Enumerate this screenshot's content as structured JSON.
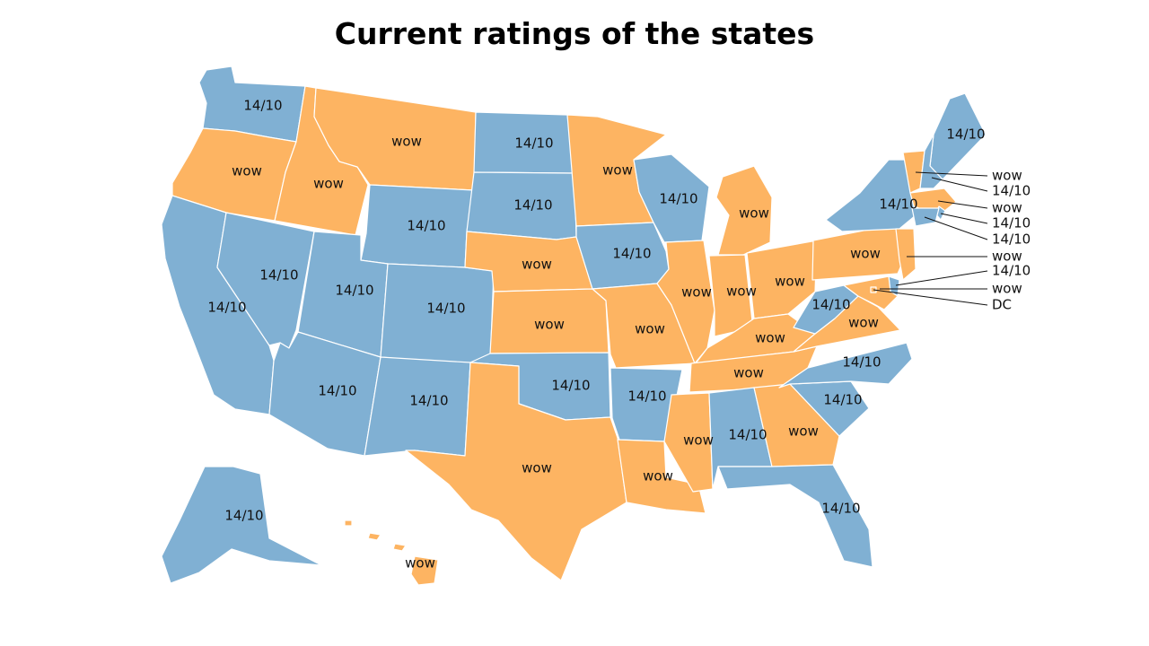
{
  "title": "Current ratings of the states",
  "colors": {
    "14/10": "#80b0d3",
    "wow": "#fdb462"
  },
  "states": [
    {
      "id": "WA",
      "value": "14/10"
    },
    {
      "id": "OR",
      "value": "wow"
    },
    {
      "id": "CA",
      "value": "14/10"
    },
    {
      "id": "ID",
      "value": "wow"
    },
    {
      "id": "NV",
      "value": "14/10"
    },
    {
      "id": "MT",
      "value": "wow"
    },
    {
      "id": "WY",
      "value": "14/10"
    },
    {
      "id": "UT",
      "value": "14/10"
    },
    {
      "id": "AZ",
      "value": "14/10"
    },
    {
      "id": "CO",
      "value": "14/10"
    },
    {
      "id": "NM",
      "value": "14/10"
    },
    {
      "id": "ND",
      "value": "14/10"
    },
    {
      "id": "SD",
      "value": "14/10"
    },
    {
      "id": "NE",
      "value": "wow"
    },
    {
      "id": "KS",
      "value": "wow"
    },
    {
      "id": "OK",
      "value": "14/10"
    },
    {
      "id": "TX",
      "value": "wow"
    },
    {
      "id": "MN",
      "value": "wow"
    },
    {
      "id": "IA",
      "value": "14/10"
    },
    {
      "id": "MO",
      "value": "wow"
    },
    {
      "id": "AR",
      "value": "14/10"
    },
    {
      "id": "LA",
      "value": "wow"
    },
    {
      "id": "WI",
      "value": "14/10"
    },
    {
      "id": "IL",
      "value": "wow"
    },
    {
      "id": "MI",
      "value": "wow"
    },
    {
      "id": "IN",
      "value": "wow"
    },
    {
      "id": "OH",
      "value": "wow"
    },
    {
      "id": "KY",
      "value": "wow"
    },
    {
      "id": "TN",
      "value": "wow"
    },
    {
      "id": "MS",
      "value": "wow"
    },
    {
      "id": "AL",
      "value": "14/10"
    },
    {
      "id": "GA",
      "value": "wow"
    },
    {
      "id": "FL",
      "value": "14/10"
    },
    {
      "id": "SC",
      "value": "14/10"
    },
    {
      "id": "NC",
      "value": "14/10"
    },
    {
      "id": "VA",
      "value": "wow"
    },
    {
      "id": "WV",
      "value": "14/10"
    },
    {
      "id": "PA",
      "value": "wow"
    },
    {
      "id": "NY",
      "value": "14/10"
    },
    {
      "id": "ME",
      "value": "14/10"
    },
    {
      "id": "AK",
      "value": "14/10"
    },
    {
      "id": "HI",
      "value": "wow"
    },
    {
      "id": "VT",
      "value": "wow"
    },
    {
      "id": "NH",
      "value": "14/10"
    },
    {
      "id": "MA",
      "value": "wow"
    },
    {
      "id": "RI",
      "value": "14/10"
    },
    {
      "id": "CT",
      "value": "14/10"
    },
    {
      "id": "NJ",
      "value": "wow"
    },
    {
      "id": "DE",
      "value": "14/10"
    },
    {
      "id": "MD",
      "value": "wow"
    },
    {
      "id": "DC",
      "value": "DC"
    }
  ]
}
